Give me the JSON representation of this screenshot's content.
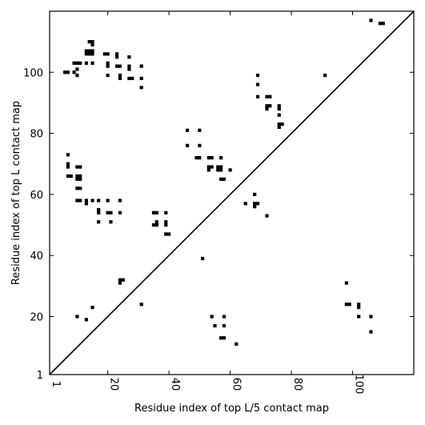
{
  "chart_data": {
    "type": "scatter",
    "xlabel": "Residue index of top L/5 contact map",
    "ylabel": "Residue index of top L contact map",
    "xlim": [
      1,
      120
    ],
    "ylim": [
      1,
      120
    ],
    "xticks": [
      1,
      20,
      40,
      60,
      80,
      100
    ],
    "yticks": [
      1,
      20,
      40,
      60,
      80,
      100
    ],
    "grid": false,
    "diagonal": true,
    "colors": {
      "marker": "#000000",
      "diagonal": "#000000",
      "frame": "#000000",
      "background": "#ffffff"
    },
    "series": [
      {
        "points": [
          [
            6,
            100
          ],
          [
            7,
            100
          ],
          [
            9,
            100
          ],
          [
            10,
            99
          ],
          [
            9,
            103
          ],
          [
            10,
            103
          ],
          [
            11,
            103
          ],
          [
            10,
            101
          ],
          [
            13,
            103
          ],
          [
            15,
            103
          ],
          [
            13,
            106
          ],
          [
            14,
            106
          ],
          [
            15,
            106
          ],
          [
            13,
            107
          ],
          [
            14,
            107
          ],
          [
            15,
            107
          ],
          [
            14,
            110
          ],
          [
            15,
            110
          ],
          [
            15,
            109
          ],
          [
            19,
            106
          ],
          [
            20,
            106
          ],
          [
            23,
            106
          ],
          [
            23,
            105
          ],
          [
            27,
            105
          ],
          [
            20,
            103
          ],
          [
            20,
            102
          ],
          [
            23,
            102
          ],
          [
            24,
            102
          ],
          [
            27,
            102
          ],
          [
            27,
            101
          ],
          [
            31,
            102
          ],
          [
            20,
            99
          ],
          [
            24,
            99
          ],
          [
            24,
            98
          ],
          [
            27,
            98
          ],
          [
            28,
            98
          ],
          [
            31,
            98
          ],
          [
            31,
            95
          ],
          [
            69,
            99
          ],
          [
            69,
            96
          ],
          [
            69,
            92
          ],
          [
            72,
            92
          ],
          [
            73,
            92
          ],
          [
            72,
            89
          ],
          [
            73,
            89
          ],
          [
            72,
            88
          ],
          [
            76,
            89
          ],
          [
            76,
            88
          ],
          [
            76,
            86
          ],
          [
            76,
            83
          ],
          [
            77,
            83
          ],
          [
            76,
            82
          ],
          [
            91,
            99
          ],
          [
            106,
            117
          ],
          [
            109,
            116
          ],
          [
            110,
            116
          ],
          [
            7,
            73
          ],
          [
            7,
            70
          ],
          [
            7,
            69
          ],
          [
            7,
            66
          ],
          [
            8,
            66
          ],
          [
            10,
            69
          ],
          [
            11,
            69
          ],
          [
            10,
            66
          ],
          [
            11,
            66
          ],
          [
            10,
            65
          ],
          [
            11,
            65
          ],
          [
            10,
            62
          ],
          [
            11,
            62
          ],
          [
            10,
            58
          ],
          [
            11,
            58
          ],
          [
            13,
            58
          ],
          [
            13,
            57
          ],
          [
            15,
            58
          ],
          [
            17,
            58
          ],
          [
            17,
            55
          ],
          [
            17,
            54
          ],
          [
            17,
            51
          ],
          [
            20,
            58
          ],
          [
            24,
            58
          ],
          [
            20,
            54
          ],
          [
            21,
            54
          ],
          [
            24,
            54
          ],
          [
            21,
            51
          ],
          [
            35,
            54
          ],
          [
            36,
            54
          ],
          [
            39,
            54
          ],
          [
            35,
            50
          ],
          [
            36,
            50
          ],
          [
            36,
            51
          ],
          [
            39,
            51
          ],
          [
            39,
            50
          ],
          [
            39,
            47
          ],
          [
            40,
            47
          ],
          [
            46,
            81
          ],
          [
            50,
            81
          ],
          [
            46,
            76
          ],
          [
            50,
            76
          ],
          [
            49,
            72
          ],
          [
            50,
            72
          ],
          [
            53,
            72
          ],
          [
            54,
            72
          ],
          [
            57,
            72
          ],
          [
            53,
            69
          ],
          [
            54,
            69
          ],
          [
            56,
            69
          ],
          [
            57,
            69
          ],
          [
            53,
            68
          ],
          [
            56,
            68
          ],
          [
            57,
            68
          ],
          [
            60,
            68
          ],
          [
            57,
            65
          ],
          [
            58,
            65
          ],
          [
            68,
            60
          ],
          [
            65,
            57
          ],
          [
            68,
            57
          ],
          [
            69,
            57
          ],
          [
            68,
            56
          ],
          [
            72,
            53
          ],
          [
            51,
            39
          ],
          [
            24,
            32
          ],
          [
            25,
            32
          ],
          [
            24,
            31
          ],
          [
            31,
            24
          ],
          [
            15,
            23
          ],
          [
            10,
            20
          ],
          [
            13,
            19
          ],
          [
            54,
            20
          ],
          [
            58,
            20
          ],
          [
            55,
            17
          ],
          [
            58,
            17
          ],
          [
            57,
            13
          ],
          [
            58,
            13
          ],
          [
            62,
            11
          ],
          [
            98,
            31
          ],
          [
            98,
            24
          ],
          [
            99,
            24
          ],
          [
            102,
            24
          ],
          [
            102,
            23
          ],
          [
            102,
            20
          ],
          [
            106,
            20
          ],
          [
            106,
            15
          ]
        ]
      }
    ]
  }
}
